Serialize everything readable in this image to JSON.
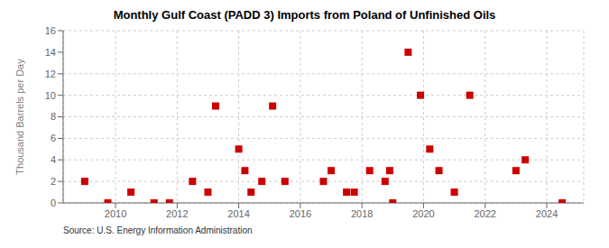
{
  "chart_data": {
    "type": "scatter",
    "title": "Monthly Gulf Coast (PADD 3) Imports from Poland of Unfinished Oils",
    "ylabel": "Thousand Barrels per Day",
    "annotations": [
      "Source: U.S. Energy Information Administration"
    ],
    "x": [
      2009.0,
      2009.75,
      2010.5,
      2011.25,
      2011.75,
      2012.5,
      2013.0,
      2013.25,
      2014.0,
      2014.2,
      2014.4,
      2014.75,
      2015.1,
      2015.5,
      2016.75,
      2017.0,
      2017.5,
      2017.75,
      2018.25,
      2018.75,
      2018.9,
      2019.0,
      2019.5,
      2019.9,
      2020.2,
      2020.5,
      2021.0,
      2021.5,
      2023.0,
      2023.3,
      2024.5
    ],
    "values": [
      2,
      0,
      1,
      0,
      0,
      2,
      1,
      9,
      5,
      3,
      1,
      2,
      9,
      2,
      2,
      3,
      1,
      1,
      3,
      2,
      3,
      0,
      14,
      10,
      5,
      3,
      1,
      10,
      3,
      4,
      0
    ],
    "color": "#cc0000",
    "marker": "square",
    "xlim": [
      2008.3,
      2025.2
    ],
    "ylim": [
      0,
      16
    ],
    "xticks": [
      2010,
      2012,
      2014,
      2016,
      2018,
      2020,
      2022,
      2024
    ],
    "yticks": [
      0,
      2,
      4,
      6,
      8,
      10,
      12,
      14,
      16
    ],
    "grid": true
  }
}
